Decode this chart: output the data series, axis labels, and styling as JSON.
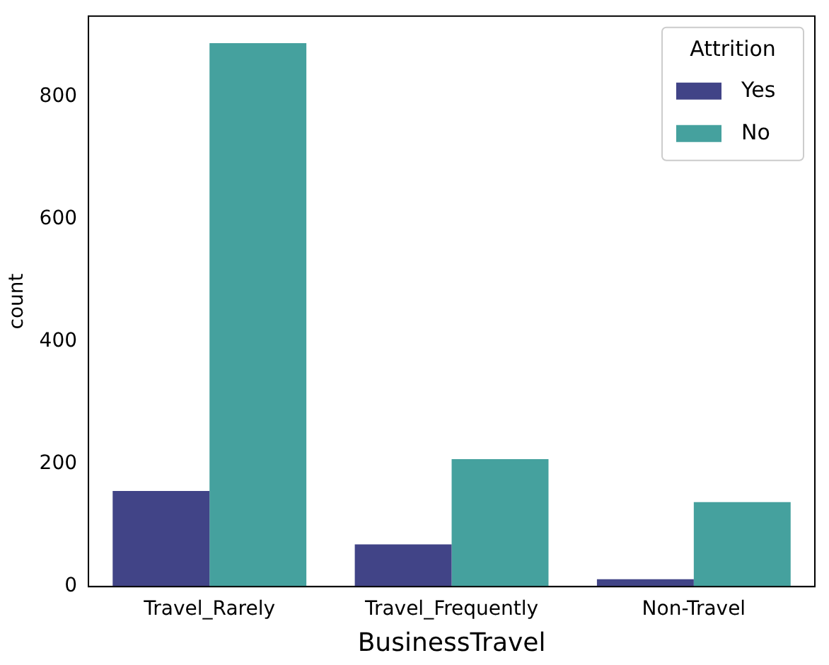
{
  "chart_data": {
    "type": "bar",
    "xlabel": "BusinessTravel",
    "ylabel": "count",
    "legend_title": "Attrition",
    "legend": "top right",
    "grid": false,
    "categories": [
      "Travel_Rarely",
      "Travel_Frequently",
      "Non-Travel"
    ],
    "series": [
      {
        "name": "Yes",
        "color": "#414487",
        "values": [
          156,
          69,
          12
        ]
      },
      {
        "name": "No",
        "color": "#45a19e",
        "values": [
          887,
          208,
          138
        ]
      }
    ],
    "ylim": [
      0,
      931
    ],
    "yticks": [
      0,
      200,
      400,
      600,
      800
    ]
  }
}
